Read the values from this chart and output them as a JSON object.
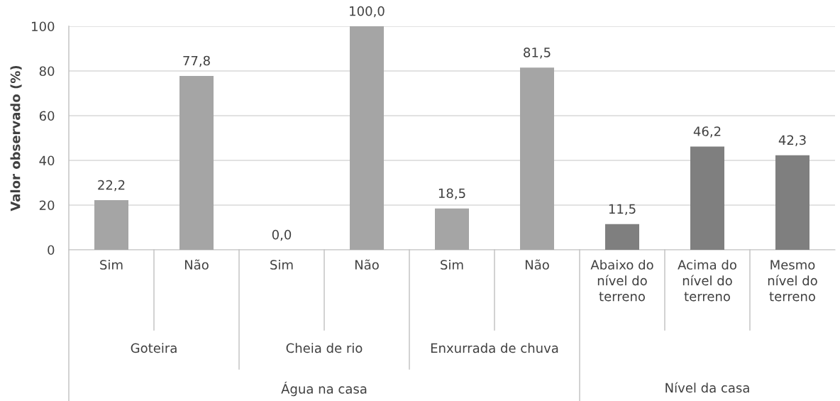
{
  "chart_data": {
    "type": "bar",
    "ylabel": "Valor observado (%)",
    "categories": [
      "Sim",
      "Não",
      "Sim",
      "Não",
      "Sim",
      "Não",
      "Abaixo do\nnível do\nterreno",
      "Acima do\nnível do\nterreno",
      "Mesmo\nnível do\nterreno"
    ],
    "values": [
      22.2,
      77.8,
      0.0,
      100.0,
      18.5,
      81.5,
      11.5,
      46.2,
      42.3
    ],
    "value_labels": [
      "22,2",
      "77,8",
      "0,0",
      "100,0",
      "18,5",
      "81,5",
      "11,5",
      "46,2",
      "42,3"
    ],
    "colors": [
      "#a5a5a5",
      "#a5a5a5",
      "#a5a5a5",
      "#a5a5a5",
      "#a5a5a5",
      "#a5a5a5",
      "#7f7f7f",
      "#7f7f7f",
      "#7f7f7f"
    ],
    "ylim": [
      0,
      100
    ],
    "yticks": [
      0,
      20,
      40,
      60,
      80,
      100
    ],
    "grid": "y",
    "annotations": [
      "Goteira",
      "Cheia de rio",
      "Enxurrada de chuva",
      "Água na casa",
      "Nível da casa"
    ]
  }
}
